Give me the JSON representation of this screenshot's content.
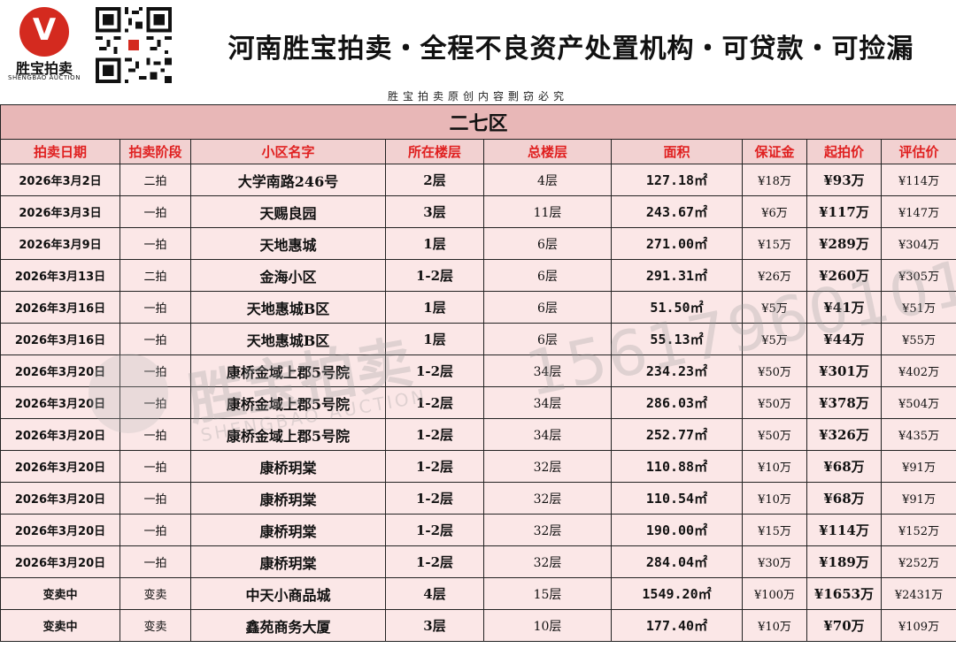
{
  "header": {
    "logo_text": "胜宝拍卖",
    "logo_en": "SHENGBAO AUCTION",
    "slogan": "河南胜宝拍卖・全程不良资产处置机构・可贷款・可捡漏"
  },
  "notice": "胜宝拍卖原创内容剽窃必究",
  "district": "二七区",
  "columns": [
    "拍卖日期",
    "拍卖阶段",
    "小区名字",
    "所在楼层",
    "总楼层",
    "面积",
    "保证金",
    "起拍价",
    "评估价"
  ],
  "rows": [
    {
      "date": "2026年3月2日",
      "stage": "二拍",
      "name": "大学南路246号",
      "floor": "2层",
      "total": "4层",
      "area": "127.18㎡",
      "deposit": "¥18万",
      "start": "¥93万",
      "eval": "¥114万"
    },
    {
      "date": "2026年3月3日",
      "stage": "一拍",
      "name": "天赐良园",
      "floor": "3层",
      "total": "11层",
      "area": "243.67㎡",
      "deposit": "¥6万",
      "start": "¥117万",
      "eval": "¥147万"
    },
    {
      "date": "2026年3月9日",
      "stage": "一拍",
      "name": "天地惠城",
      "floor": "1层",
      "total": "6层",
      "area": "271.00㎡",
      "deposit": "¥15万",
      "start": "¥289万",
      "eval": "¥304万"
    },
    {
      "date": "2026年3月13日",
      "stage": "二拍",
      "name": "金海小区",
      "floor": "1-2层",
      "total": "6层",
      "area": "291.31㎡",
      "deposit": "¥26万",
      "start": "¥260万",
      "eval": "¥305万"
    },
    {
      "date": "2026年3月16日",
      "stage": "一拍",
      "name": "天地惠城B区",
      "floor": "1层",
      "total": "6层",
      "area": "51.50㎡",
      "deposit": "¥5万",
      "start": "¥41万",
      "eval": "¥51万"
    },
    {
      "date": "2026年3月16日",
      "stage": "一拍",
      "name": "天地惠城B区",
      "floor": "1层",
      "total": "6层",
      "area": "55.13㎡",
      "deposit": "¥5万",
      "start": "¥44万",
      "eval": "¥55万"
    },
    {
      "date": "2026年3月20日",
      "stage": "一拍",
      "name": "康桥金域上郡5号院",
      "floor": "1-2层",
      "total": "34层",
      "area": "234.23㎡",
      "deposit": "¥50万",
      "start": "¥301万",
      "eval": "¥402万"
    },
    {
      "date": "2026年3月20日",
      "stage": "一拍",
      "name": "康桥金域上郡5号院",
      "floor": "1-2层",
      "total": "34层",
      "area": "286.03㎡",
      "deposit": "¥50万",
      "start": "¥378万",
      "eval": "¥504万"
    },
    {
      "date": "2026年3月20日",
      "stage": "一拍",
      "name": "康桥金域上郡5号院",
      "floor": "1-2层",
      "total": "34层",
      "area": "252.77㎡",
      "deposit": "¥50万",
      "start": "¥326万",
      "eval": "¥435万"
    },
    {
      "date": "2026年3月20日",
      "stage": "一拍",
      "name": "康桥玥棠",
      "floor": "1-2层",
      "total": "32层",
      "area": "110.88㎡",
      "deposit": "¥10万",
      "start": "¥68万",
      "eval": "¥91万"
    },
    {
      "date": "2026年3月20日",
      "stage": "一拍",
      "name": "康桥玥棠",
      "floor": "1-2层",
      "total": "32层",
      "area": "110.54㎡",
      "deposit": "¥10万",
      "start": "¥68万",
      "eval": "¥91万"
    },
    {
      "date": "2026年3月20日",
      "stage": "一拍",
      "name": "康桥玥棠",
      "floor": "1-2层",
      "total": "32层",
      "area": "190.00㎡",
      "deposit": "¥15万",
      "start": "¥114万",
      "eval": "¥152万"
    },
    {
      "date": "2026年3月20日",
      "stage": "一拍",
      "name": "康桥玥棠",
      "floor": "1-2层",
      "total": "32层",
      "area": "284.04㎡",
      "deposit": "¥30万",
      "start": "¥189万",
      "eval": "¥252万"
    },
    {
      "date": "变卖中",
      "stage": "变卖",
      "name": "中天小商品城",
      "floor": "4层",
      "total": "15层",
      "area": "1549.20㎡",
      "deposit": "¥100万",
      "start": "¥1653万",
      "eval": "¥2431万"
    },
    {
      "date": "变卖中",
      "stage": "变卖",
      "name": "鑫苑商务大厦",
      "floor": "3层",
      "total": "10层",
      "area": "177.40㎡",
      "deposit": "¥10万",
      "start": "¥70万",
      "eval": "¥109万"
    }
  ],
  "watermark": {
    "brand": "胜宝拍卖",
    "brand_en": "SHENGBAO AUCTION",
    "phone": "15617960101"
  },
  "colors": {
    "header_text": "#e02020",
    "district_bg": "#e8b7b7",
    "header_bg": "#f2d1d1",
    "row_bg": "#fbe7e7",
    "logo_red": "#d42a1f"
  }
}
